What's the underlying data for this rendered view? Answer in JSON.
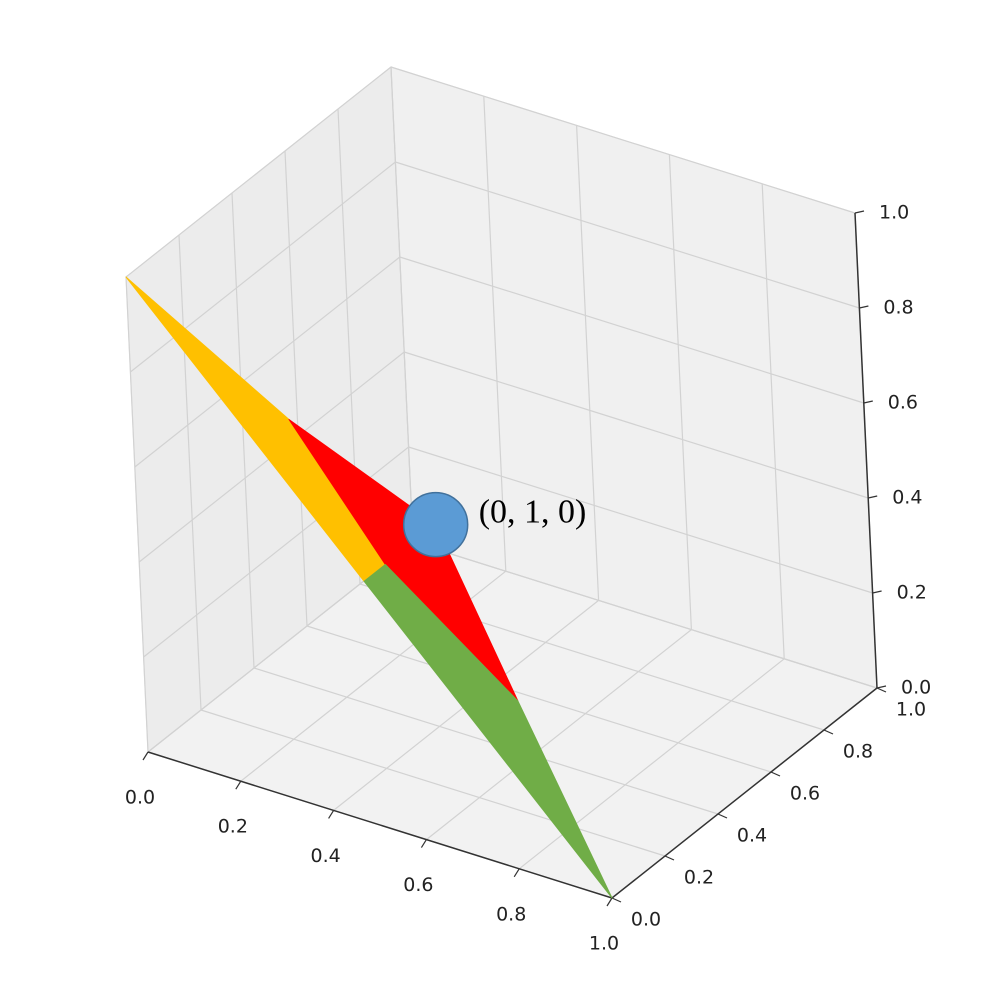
{
  "chart_data": {
    "type": "polygon3d",
    "xlim": [
      0,
      1
    ],
    "ylim": [
      0,
      1
    ],
    "zlim": [
      0,
      1
    ],
    "xticks": [
      {
        "value": 0,
        "label": "0.0"
      },
      {
        "value": 0.2,
        "label": "0.2"
      },
      {
        "value": 0.4,
        "label": "0.4"
      },
      {
        "value": 0.6,
        "label": "0.6"
      },
      {
        "value": 0.8,
        "label": "0.8"
      },
      {
        "value": 1,
        "label": "1.0"
      }
    ],
    "yticks": [
      {
        "value": 0,
        "label": "0.0"
      },
      {
        "value": 0.2,
        "label": "0.2"
      },
      {
        "value": 0.4,
        "label": "0.4"
      },
      {
        "value": 0.6,
        "label": "0.6"
      },
      {
        "value": 0.8,
        "label": "0.8"
      },
      {
        "value": 1,
        "label": "1.0"
      }
    ],
    "zticks": [
      {
        "value": 0,
        "label": "0.0"
      },
      {
        "value": 0.2,
        "label": "0.2"
      },
      {
        "value": 0.4,
        "label": "0.4"
      },
      {
        "value": 0.6,
        "label": "0.6"
      },
      {
        "value": 0.8,
        "label": "0.8"
      },
      {
        "value": 1,
        "label": "1.0"
      }
    ],
    "grid": true,
    "polygons": [
      {
        "color": "#ffc000",
        "vertices": [
          [
            0,
            0,
            1
          ],
          [
            0.27,
            0.12,
            0.73
          ],
          [
            0.49,
            0.08,
            0.51
          ],
          [
            0.49,
            0,
            0.51
          ]
        ]
      },
      {
        "color": "#ff0000",
        "vertices": [
          [
            0.27,
            0.12,
            0.73
          ],
          [
            0.49,
            0.27,
            0.51
          ],
          [
            0.73,
            0.14,
            0.27
          ],
          [
            0.49,
            0.08,
            0.51
          ]
        ]
      },
      {
        "color": "#70ad47",
        "vertices": [
          [
            0.49,
            0,
            0.51
          ],
          [
            0.49,
            0.08,
            0.51
          ],
          [
            0.73,
            0.14,
            0.27
          ],
          [
            1,
            0,
            0
          ]
        ]
      }
    ],
    "point": {
      "position": [
        0.49,
        0.27,
        0.51
      ],
      "color": "#5b9bd5",
      "label": "(0, 1, 0)"
    }
  }
}
